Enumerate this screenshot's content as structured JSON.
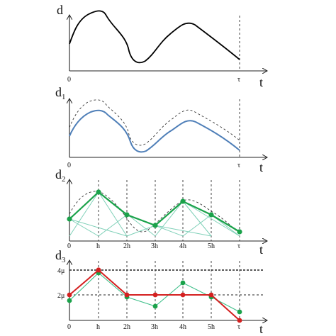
{
  "panels": [
    {
      "id": "p1",
      "ylabel": "d",
      "ylabel_sub": "",
      "xlabel": "t",
      "ticks": [
        "0",
        "τ"
      ]
    },
    {
      "id": "p2",
      "ylabel": "d",
      "ylabel_sub": "1",
      "xlabel": "t",
      "ticks": [
        "0",
        "τ"
      ]
    },
    {
      "id": "p3",
      "ylabel": "d",
      "ylabel_sub": "2",
      "xlabel": "t",
      "ticks": [
        "0",
        "h",
        "2h",
        "3h",
        "4h",
        "5h",
        "τ"
      ]
    },
    {
      "id": "p4",
      "ylabel": "d",
      "ylabel_sub": "3",
      "xlabel": "t",
      "ticks": [
        "0",
        "h",
        "2h",
        "3h",
        "4h",
        "5h",
        "τ"
      ],
      "ytick_labels": [
        "4μ",
        "2μ"
      ]
    }
  ],
  "colors": {
    "axis": "#222222",
    "curve": "#000000",
    "smooth": "#4f7fb8",
    "green": "#1aa24a",
    "green_light": "#7fd0b8",
    "red": "#d42020"
  }
}
